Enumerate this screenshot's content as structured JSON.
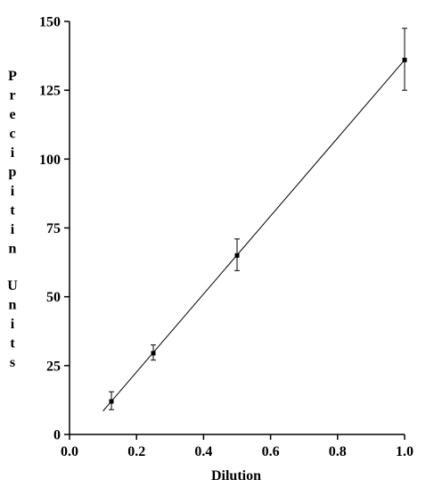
{
  "chart_data": {
    "type": "scatter",
    "xlabel": "Dilution",
    "ylabel": "Precipitin Units",
    "xlim": [
      0,
      1.0
    ],
    "ylim": [
      0,
      150
    ],
    "x_ticks": [
      "0.0",
      "0.2",
      "0.4",
      "0.6",
      "0.8",
      "1.0"
    ],
    "y_ticks": [
      "0",
      "25",
      "50",
      "75",
      "100",
      "125",
      "150"
    ],
    "grid": false,
    "series": [
      {
        "points": [
          {
            "x": 0.125,
            "y": 12,
            "err_low": 3,
            "err_high": 3.5
          },
          {
            "x": 0.25,
            "y": 29.5,
            "err_low": 2.5,
            "err_high": 3
          },
          {
            "x": 0.5,
            "y": 65,
            "err_low": 5.5,
            "err_high": 6
          },
          {
            "x": 1.0,
            "y": 136,
            "err_low": 11,
            "err_high": 11.5
          }
        ]
      }
    ],
    "fit_line": {
      "x": [
        0.1,
        1.0
      ],
      "y": [
        8.5,
        136
      ]
    }
  }
}
